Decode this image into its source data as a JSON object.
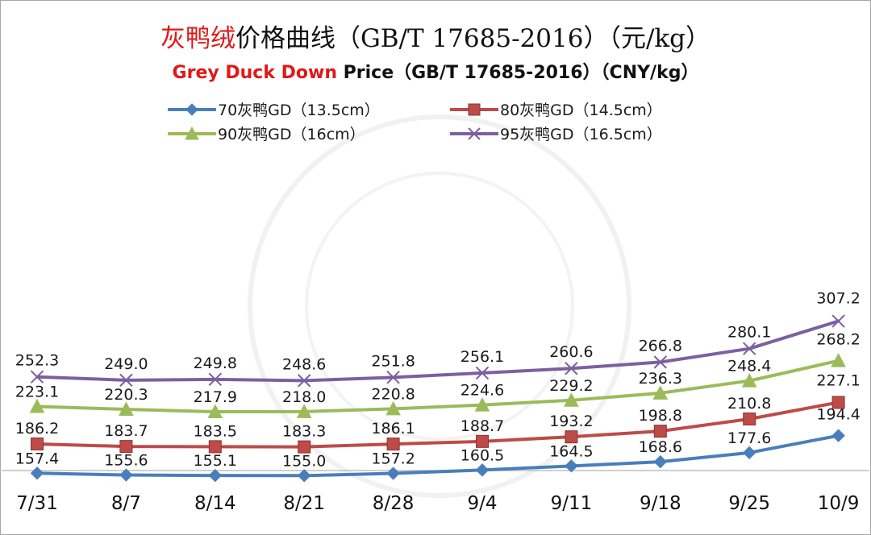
{
  "title_cn": {
    "red": "灰鸭绒",
    "rest": "价格曲线（GB/T 17685-2016）（元/kg）"
  },
  "title_en": {
    "red": "Grey Duck Down",
    "rest": " Price（GB/T 17685-2016）（CNY/kg）"
  },
  "chart_data": {
    "type": "line",
    "categories": [
      "7/31",
      "8/7",
      "8/14",
      "8/21",
      "8/28",
      "9/4",
      "9/11",
      "9/18",
      "9/25",
      "10/9"
    ],
    "ylim": [
      100,
      340
    ],
    "grid": false,
    "legend_position": "top",
    "series": [
      {
        "name": "70灰鸭GD（13.5cm）",
        "color": "#4a7ebb",
        "marker": "diamond",
        "values": [
          157.4,
          155.6,
          155.1,
          155.0,
          157.2,
          160.5,
          164.5,
          168.6,
          177.6,
          194.4
        ],
        "labels": [
          "157.4",
          "155.6",
          "155.1",
          "155.0",
          "157.2",
          "160.5",
          "164.5",
          "168.6",
          "177.6",
          "194.4"
        ]
      },
      {
        "name": "80灰鸭GD（14.5cm）",
        "color": "#be4b48",
        "marker": "square",
        "values": [
          186.2,
          183.7,
          183.5,
          183.3,
          186.1,
          188.7,
          193.2,
          198.8,
          210.8,
          227.1
        ],
        "labels": [
          "186.2",
          "183.7",
          "183.5",
          "183.3",
          "186.1",
          "188.7",
          "193.2",
          "198.8",
          "210.8",
          "227.1"
        ]
      },
      {
        "name": "90灰鸭GD（16cm）",
        "color": "#9bbb59",
        "marker": "triangle",
        "values": [
          223.1,
          220.3,
          217.9,
          218.0,
          220.8,
          224.6,
          229.2,
          236.3,
          248.4,
          268.2
        ],
        "labels": [
          "223.1",
          "220.3",
          "217.9",
          "218.0",
          "220.8",
          "224.6",
          "229.2",
          "236.3",
          "248.4",
          "268.2"
        ]
      },
      {
        "name": "95灰鸭GD（16.5cm）",
        "color": "#7d5fa0",
        "marker": "x",
        "values": [
          252.3,
          249.0,
          249.8,
          248.6,
          251.8,
          256.1,
          260.6,
          266.8,
          280.1,
          307.2
        ],
        "labels": [
          "252.3",
          "249.0",
          "249.8",
          "248.6",
          "251.8",
          "256.1",
          "260.6",
          "266.8",
          "280.1",
          "307.2"
        ]
      }
    ]
  }
}
